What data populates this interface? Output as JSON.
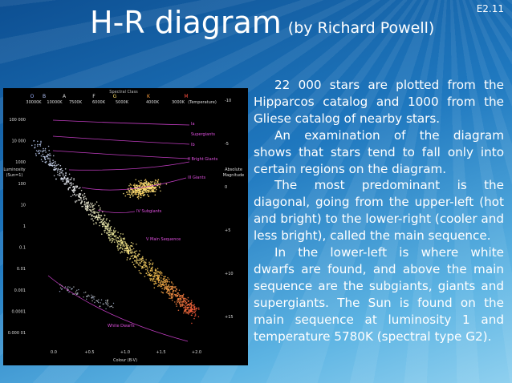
{
  "slide": {
    "title": "H-R diagram",
    "subtitle": "(by Richard Powell)",
    "number": "E2.11"
  },
  "figure": {
    "spectral_class_label": "Spectral Class",
    "spectral_classes": [
      "O",
      "B",
      "A",
      "F",
      "G",
      "K",
      "M"
    ],
    "temperatures": [
      "30000K",
      "10000K",
      "7500K",
      "6000K",
      "5000K",
      "4000K",
      "3000K",
      "(Temperature)"
    ],
    "luminosity_ticks": [
      "100 000",
      "10 000",
      "1000",
      "100",
      "10",
      "1",
      "0.1",
      "0.01",
      "0.001",
      "0.0001",
      "0.000 01"
    ],
    "luminosity_label": [
      "Luminosity",
      "(Sun=1)"
    ],
    "magnitude_label": [
      "Absolute",
      "Magnitude"
    ],
    "magnitude_ticks": [
      "-10",
      "-5",
      "0",
      "+5",
      "+10",
      "+15"
    ],
    "colour_ticks": [
      "0.0",
      "+0.5",
      "+1.0",
      "+1.5",
      "+2.0"
    ],
    "colour_label": "Colour (B-V)",
    "regions": [
      "Ia",
      "Supergiants",
      "Ib",
      "II Bright Giants",
      "III Giants",
      "IV Subgiants",
      "V Main Sequence",
      "White Dwarfs"
    ]
  },
  "paragraphs": [
    "22 000 stars are plotted from the Hipparcos catalog and 1000 from the Gliese catalog of nearby stars.",
    "An examination of the diagram shows that stars tend to fall only into certain regions on the diagram.",
    "The most predominant is the diagonal, going from the upper-left (hot and bright) to the lower-right (cooler and less bright), called the main sequence.",
    "In the lower-left is where white dwarfs are found, and above the main sequence are the subgiants, giants and supergiants. The Sun is found on the main sequence at luminosity 1 and temperature 5780K (spectral type G2)."
  ]
}
